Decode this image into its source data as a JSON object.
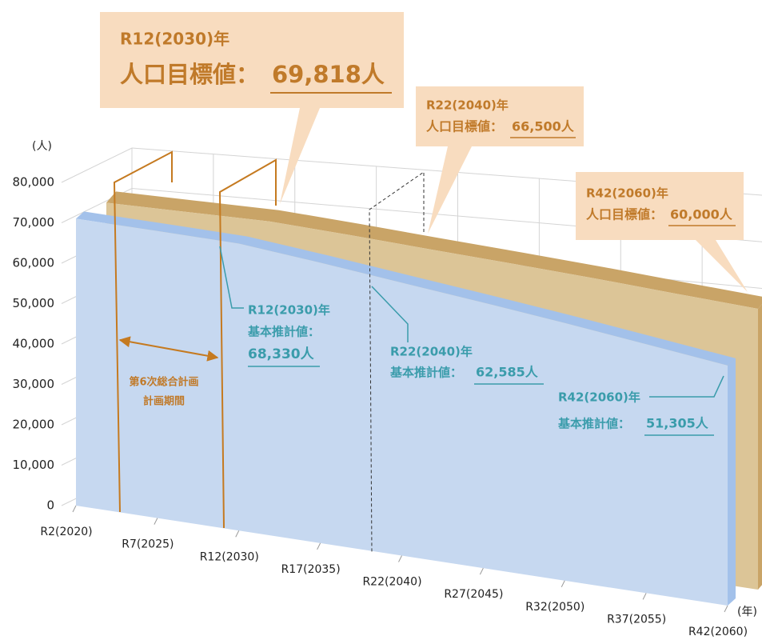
{
  "chart_data": {
    "type": "area",
    "y_unit_label": "(人)",
    "x_unit_label": "(年)",
    "categories": [
      "R2(2020)",
      "R7(2025)",
      "R12(2030)",
      "R17(2035)",
      "R22(2040)",
      "R27(2045)",
      "R32(2050)",
      "R37(2055)",
      "R42(2060)"
    ],
    "series": [
      {
        "name": "人口目標値：",
        "color": "#dcc597",
        "top_color": "#c9a467",
        "values": [
          71000,
          70400,
          69818,
          68200,
          66500,
          64900,
          63300,
          61600,
          60000
        ],
        "value_labels": [
          null,
          null,
          "69,818人",
          null,
          "66,500人",
          null,
          null,
          null,
          "60,000人"
        ],
        "callout_titles": [
          null,
          null,
          "R12(2030)年",
          null,
          "R22(2040)年",
          null,
          null,
          null,
          "R42(2060)年"
        ]
      },
      {
        "name": "基本推計値：",
        "color": "#c6d8f0",
        "top_color": "#a3c1ea",
        "values": [
          71000,
          69700,
          68330,
          65500,
          62585,
          59800,
          57000,
          54100,
          51305
        ],
        "value_labels": [
          null,
          null,
          "68,330人",
          null,
          "62,585人",
          null,
          null,
          null,
          "51,305人"
        ],
        "callout_titles": [
          null,
          null,
          "R12(2030)年",
          null,
          "R22(2040)年",
          null,
          null,
          null,
          "R42(2060)年"
        ]
      }
    ],
    "period_label": [
      "第6次総合計画",
      "計画期間"
    ],
    "ylim": [
      0,
      80000
    ],
    "yticks": [
      0,
      {
        "value": 10000,
        "label": "10,000"
      },
      {
        "value": 20000,
        "label": "20,000"
      },
      {
        "value": 30000,
        "label": "30,000"
      },
      {
        "value": 40000,
        "label": "40,000"
      },
      {
        "value": 50000,
        "label": "50,000"
      },
      {
        "value": 60000,
        "label": "60,000"
      },
      {
        "value": 70000,
        "label": "70,000"
      },
      {
        "value": 80000,
        "label": "80,000"
      }
    ],
    "grid": true
  }
}
